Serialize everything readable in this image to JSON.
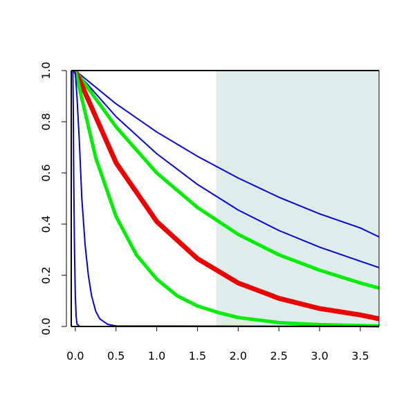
{
  "chart_data": {
    "type": "line",
    "title": "",
    "xlabel": "",
    "ylabel": "",
    "xlim": [
      -0.05,
      3.73
    ],
    "ylim": [
      0,
      1
    ],
    "x_ticks": [
      "0.0",
      "0.5",
      "1.0",
      "1.5",
      "2.0",
      "2.5",
      "3.0",
      "3.5"
    ],
    "x_tick_values": [
      0,
      0.5,
      1,
      1.5,
      2,
      2.5,
      3,
      3.5
    ],
    "y_ticks": [
      "0.0",
      "0.2",
      "0.4",
      "0.6",
      "0.8",
      "1.0"
    ],
    "y_tick_values": [
      0,
      0.2,
      0.4,
      0.6,
      0.8,
      1
    ],
    "grid": false,
    "shaded_region": {
      "x_from": 1.73,
      "x_to": 3.73,
      "color": "#dfecec"
    },
    "series": [
      {
        "color": "#0000dd",
        "width": 2,
        "x": [
          0,
          0.5,
          1,
          1.5,
          2,
          2.5,
          3,
          3.5,
          3.73
        ],
        "y": [
          1,
          0.87,
          0.76,
          0.665,
          0.58,
          0.505,
          0.44,
          0.385,
          0.35
        ]
      },
      {
        "color": "#0000dd",
        "width": 2,
        "x": [
          0,
          0.5,
          1,
          1.5,
          2,
          2.5,
          3,
          3.5,
          3.73
        ],
        "y": [
          1,
          0.82,
          0.675,
          0.555,
          0.455,
          0.375,
          0.31,
          0.255,
          0.23
        ]
      },
      {
        "color": "#00ee00",
        "width": 5,
        "x": [
          0,
          0.5,
          1,
          1.5,
          2,
          2.5,
          3,
          3.5,
          3.73
        ],
        "y": [
          1,
          0.78,
          0.6,
          0.465,
          0.36,
          0.28,
          0.22,
          0.17,
          0.15
        ]
      },
      {
        "color": "#ee0000",
        "width": 7,
        "x": [
          0,
          0.5,
          1,
          1.5,
          2,
          2.5,
          3,
          3.5,
          3.73
        ],
        "y": [
          1,
          0.64,
          0.41,
          0.265,
          0.17,
          0.11,
          0.07,
          0.045,
          0.03
        ]
      },
      {
        "color": "#00ee00",
        "width": 5,
        "x": [
          0,
          0.25,
          0.5,
          0.75,
          1,
          1.25,
          1.5,
          1.75,
          2,
          2.5,
          3,
          3.73
        ],
        "y": [
          1,
          0.66,
          0.43,
          0.28,
          0.185,
          0.12,
          0.08,
          0.055,
          0.035,
          0.015,
          0.007,
          0.002
        ]
      },
      {
        "color": "#0000dd",
        "width": 2,
        "x": [
          -0.02,
          0,
          0.02,
          0.05,
          0.08,
          0.12,
          0.16,
          0.2,
          0.25,
          0.3,
          0.4,
          0.5,
          3.73
        ],
        "y": [
          1,
          0.99,
          0.9,
          0.72,
          0.5,
          0.32,
          0.2,
          0.12,
          0.06,
          0.03,
          0.008,
          0.002,
          0
        ]
      },
      {
        "color": "#0000dd",
        "width": 2,
        "x": [
          -0.03,
          -0.025,
          -0.02,
          -0.01,
          0,
          0.01,
          0.02,
          0.05,
          3.73
        ],
        "y": [
          1,
          0.85,
          0.6,
          0.3,
          0.12,
          0.04,
          0.01,
          0,
          0
        ]
      }
    ]
  }
}
